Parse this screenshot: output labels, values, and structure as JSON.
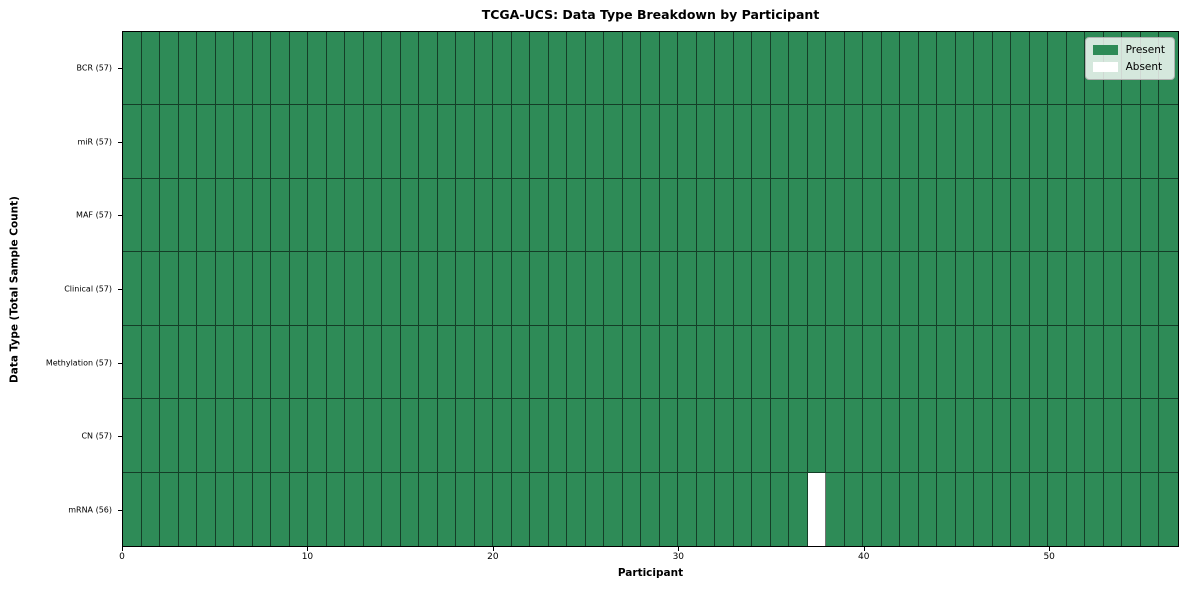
{
  "chart_data": {
    "type": "heatmap",
    "title": "TCGA-UCS: Data Type Breakdown by Participant",
    "xlabel": "Participant",
    "ylabel": "Data Type (Total Sample Count)",
    "x_ticks": [
      0,
      10,
      20,
      30,
      40,
      50
    ],
    "x_range": [
      0,
      57
    ],
    "n_participants": 57,
    "rows": [
      {
        "label": "BCR (57)",
        "data_type": "BCR",
        "total_sample_count": 57,
        "absent_participants": []
      },
      {
        "label": "miR (57)",
        "data_type": "miR",
        "total_sample_count": 57,
        "absent_participants": []
      },
      {
        "label": "MAF (57)",
        "data_type": "MAF",
        "total_sample_count": 57,
        "absent_participants": []
      },
      {
        "label": "Clinical (57)",
        "data_type": "Clinical",
        "total_sample_count": 57,
        "absent_participants": []
      },
      {
        "label": "Methylation (57)",
        "data_type": "Methylation",
        "total_sample_count": 57,
        "absent_participants": []
      },
      {
        "label": "CN (57)",
        "data_type": "CN",
        "total_sample_count": 57,
        "absent_participants": []
      },
      {
        "label": "mRNA (56)",
        "data_type": "mRNA",
        "total_sample_count": 56,
        "absent_participants": [
          37
        ]
      }
    ],
    "legend": {
      "position": "upper-right",
      "entries": [
        {
          "label": "Present",
          "color": "#2e8b57"
        },
        {
          "label": "Absent",
          "color": "#ffffff"
        }
      ]
    },
    "colors": {
      "present": "#2e8b57",
      "absent": "#ffffff",
      "cell_edge": "rgba(0,0,0,0.55)",
      "axis": "#000000",
      "background": "#ffffff"
    }
  }
}
